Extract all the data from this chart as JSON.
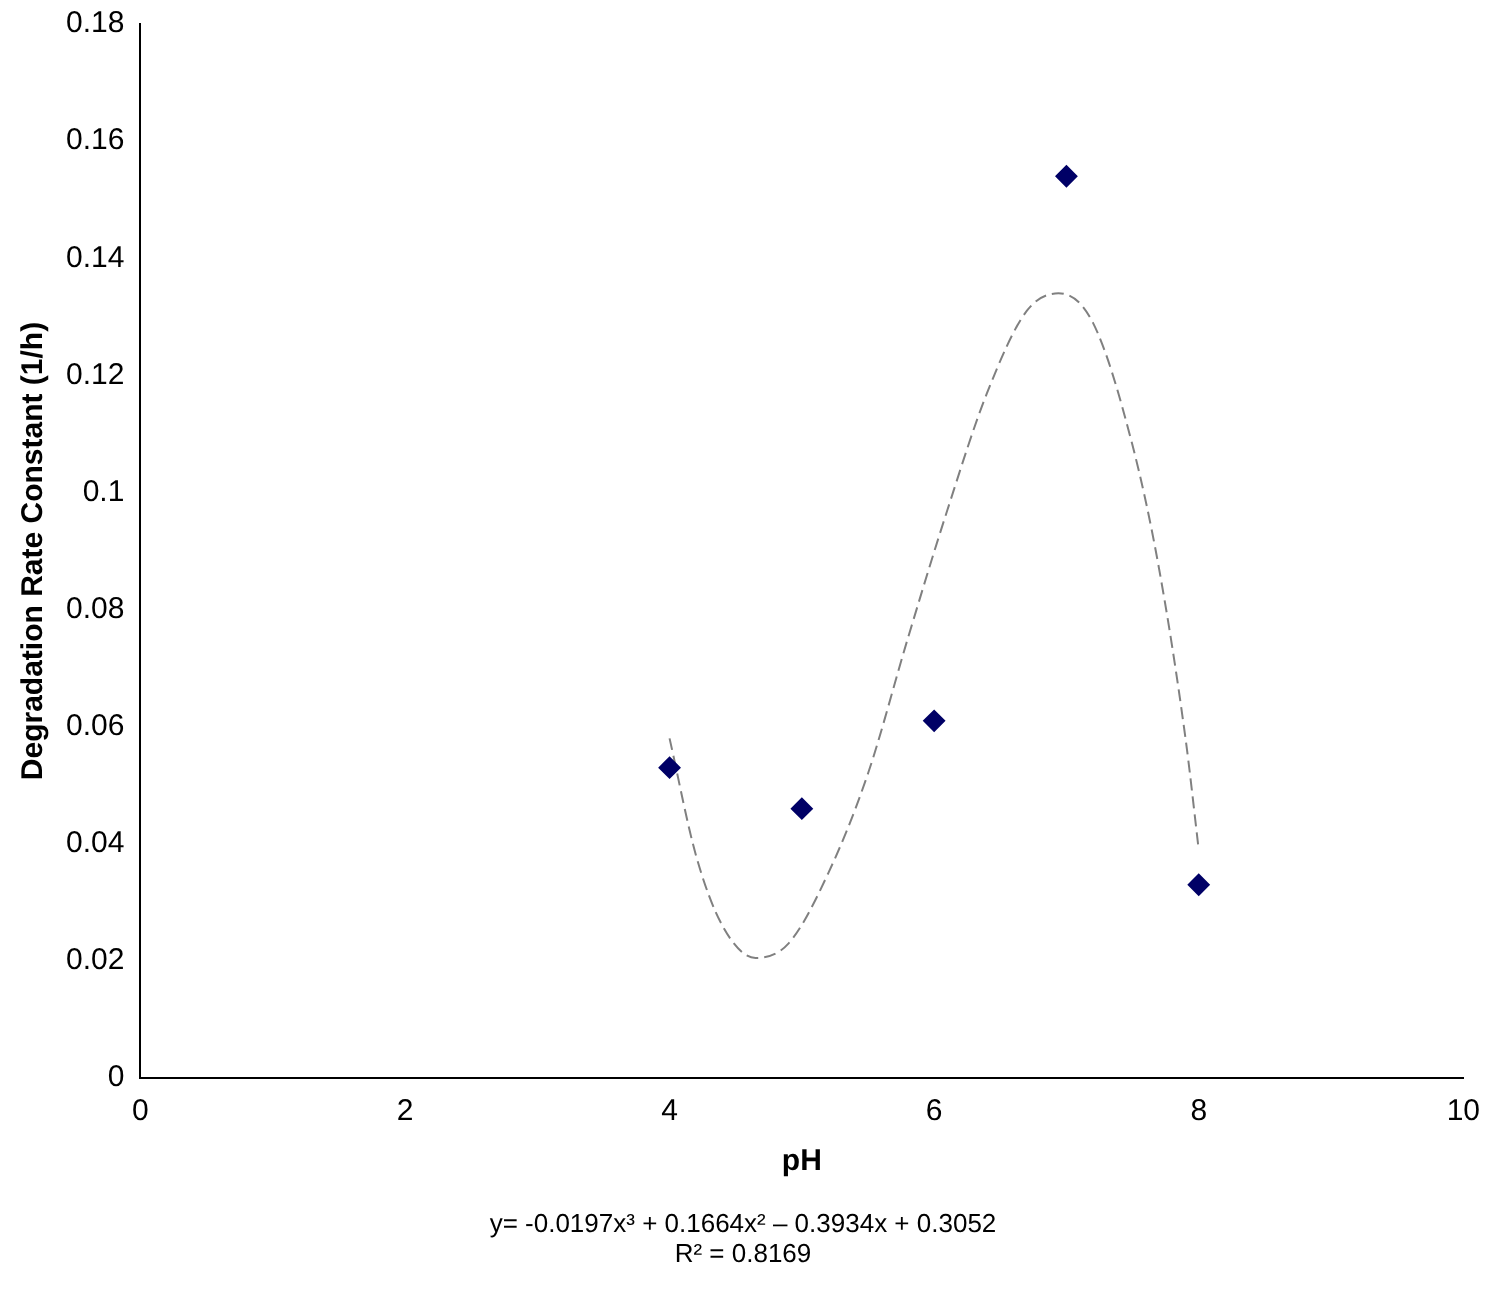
{
  "chart_data": {
    "type": "scatter",
    "xlabel": "pH",
    "ylabel": "Degradation Rate Constant (1/h)",
    "xlim": [
      0,
      10
    ],
    "xticks": [
      0,
      2,
      4,
      6,
      8,
      10
    ],
    "ylim": [
      0,
      0.18
    ],
    "yticks": [
      0,
      0.02,
      0.04,
      0.06,
      0.08,
      0.1,
      0.12,
      0.14,
      0.16,
      0.18
    ],
    "grid": false,
    "legend": false,
    "marker": "diamond",
    "series": [
      {
        "color": "#000066",
        "x": [
          4,
          5,
          6,
          7,
          8
        ],
        "values": [
          0.053,
          0.046,
          0.061,
          0.154,
          0.033
        ]
      },
      {
        "type": "line",
        "color": "#808080",
        "line_style": "dashed",
        "marker": "none",
        "x": [
          4,
          4.2,
          4.4,
          4.65,
          4.9,
          5.2,
          5.5,
          5.8,
          6.1,
          6.4,
          6.7,
          6.94,
          7.2,
          7.5,
          7.7,
          7.9,
          8
        ],
        "values": [
          0.058,
          0.038,
          0.026,
          0.0205,
          0.023,
          0.035,
          0.052,
          0.075,
          0.097,
          0.117,
          0.131,
          0.134,
          0.129,
          0.108,
          0.087,
          0.058,
          0.039
        ]
      }
    ],
    "annotations": [
      "y= -0.0197x³ + 0.1664x² – 0.3934x + 0.3052",
      "R² = 0.8169"
    ]
  }
}
